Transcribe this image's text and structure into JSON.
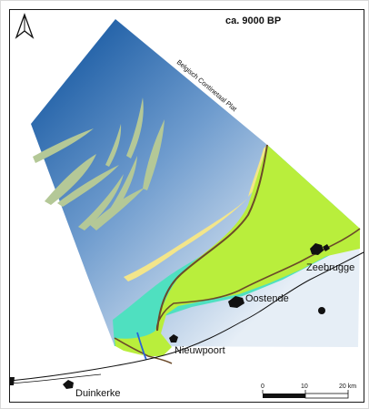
{
  "title": "ca. 9000 BP",
  "shelf_label": "Belgisch Continetaal Plat",
  "places": {
    "zeebrugge": "Zeebrugge",
    "oostende": "Oostende",
    "nieuwpoort": "Nieuwpoort",
    "duinkerke": "Duinkerke"
  },
  "scalebar": {
    "ticks": [
      "0",
      "10",
      "20 km"
    ]
  },
  "north_arrow_icon": "north-arrow-icon",
  "colors": {
    "sea_deep": "#1f5fa6",
    "sea_light": "#dfe8f2",
    "tidal_flat": "#4fe0c0",
    "land": "#b9ee3c",
    "sandbank": "#b4c897",
    "beach": "#f3e58a",
    "coastline": "#6b4a2a",
    "river": "#2a63d6"
  }
}
